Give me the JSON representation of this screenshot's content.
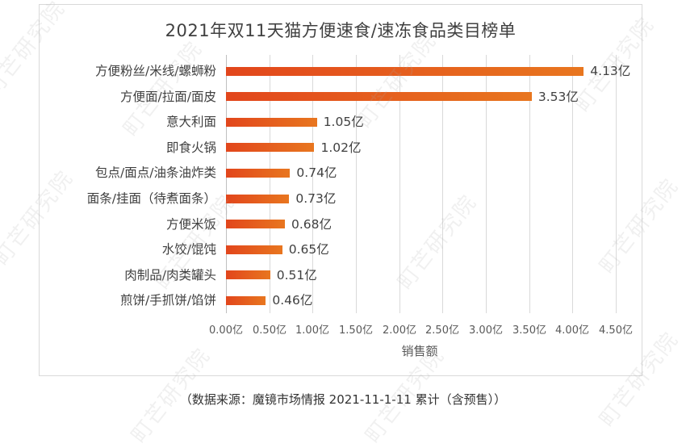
{
  "chart_data": {
    "type": "bar",
    "orientation": "horizontal",
    "title": "2021年双11天猫方便速食/速冻食品类目榜单",
    "xlabel": "销售额",
    "ylabel": "",
    "categories": [
      "方便粉丝/米线/螺蛳粉",
      "方便面/拉面/面皮",
      "意大利面",
      "即食火锅",
      "包点/面点/油条油炸类",
      "面条/挂面（待煮面条）",
      "方便米饭",
      "水饺/馄饨",
      "肉制品/肉类罐头",
      "煎饼/手抓饼/馅饼"
    ],
    "values": [
      4.13,
      3.53,
      1.05,
      1.02,
      0.74,
      0.73,
      0.68,
      0.65,
      0.51,
      0.46
    ],
    "unit": "亿",
    "value_labels": [
      "4.13亿",
      "3.53亿",
      "1.05亿",
      "1.02亿",
      "0.74亿",
      "0.73亿",
      "0.68亿",
      "0.65亿",
      "0.51亿",
      "0.46亿"
    ],
    "xlim": [
      0,
      4.5
    ],
    "xticks": [
      "0.00亿",
      "0.50亿",
      "1.00亿",
      "1.50亿",
      "2.00亿",
      "2.50亿",
      "3.00亿",
      "3.50亿",
      "4.00亿",
      "4.50亿"
    ],
    "grid": true,
    "legend": null,
    "colors": {
      "bar_start": "#e2461c",
      "bar_end": "#e8761f"
    }
  },
  "source_note": "（数据来源：魔镜市场情报 2021-11-1-11 累计（含预售））",
  "watermark": "町芒研究院"
}
